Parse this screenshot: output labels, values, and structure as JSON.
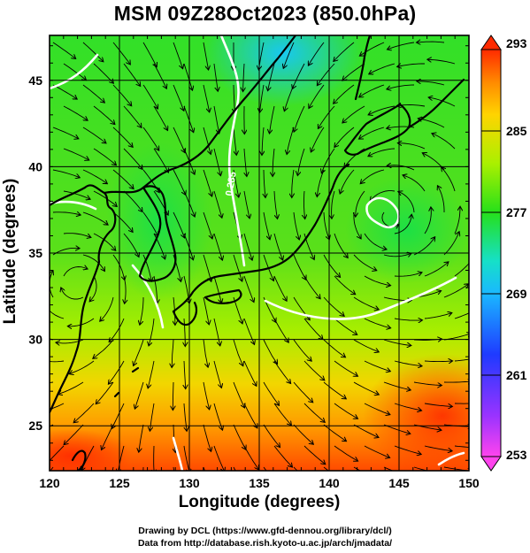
{
  "figure": {
    "title": "MSM 09Z28Oct2023 (850.0hPa)",
    "credit_line1": "Drawing by DCL (https://www.gfd-dennou.org/library/dcl/)",
    "credit_line2": "Data from http://database.rish.kyoto-u.ac.jp/arch/jmadata/"
  },
  "map": {
    "xlabel": "Longitude (degrees)",
    "ylabel": "Latitude  (degrees)",
    "lon_range": [
      120,
      150
    ],
    "lat_range": [
      22.4,
      47.6
    ],
    "lon_ticks": [
      "120",
      "125",
      "130",
      "135",
      "140",
      "145",
      "150"
    ],
    "lat_ticks": [
      "25",
      "30",
      "35",
      "40",
      "45"
    ],
    "graticule_step_deg": 5,
    "contour_label": "0.285"
  },
  "colorbar": {
    "range": [
      253,
      293
    ],
    "tick_labels": [
      "293",
      "285",
      "277",
      "269",
      "261",
      "253"
    ],
    "tick_values": [
      293,
      285,
      277,
      269,
      261,
      253
    ]
  },
  "colors": {
    "cold": "#1a9fff",
    "mid": "#22e01a",
    "warm": "#ff8a00",
    "hot": "#ff2a00"
  }
}
